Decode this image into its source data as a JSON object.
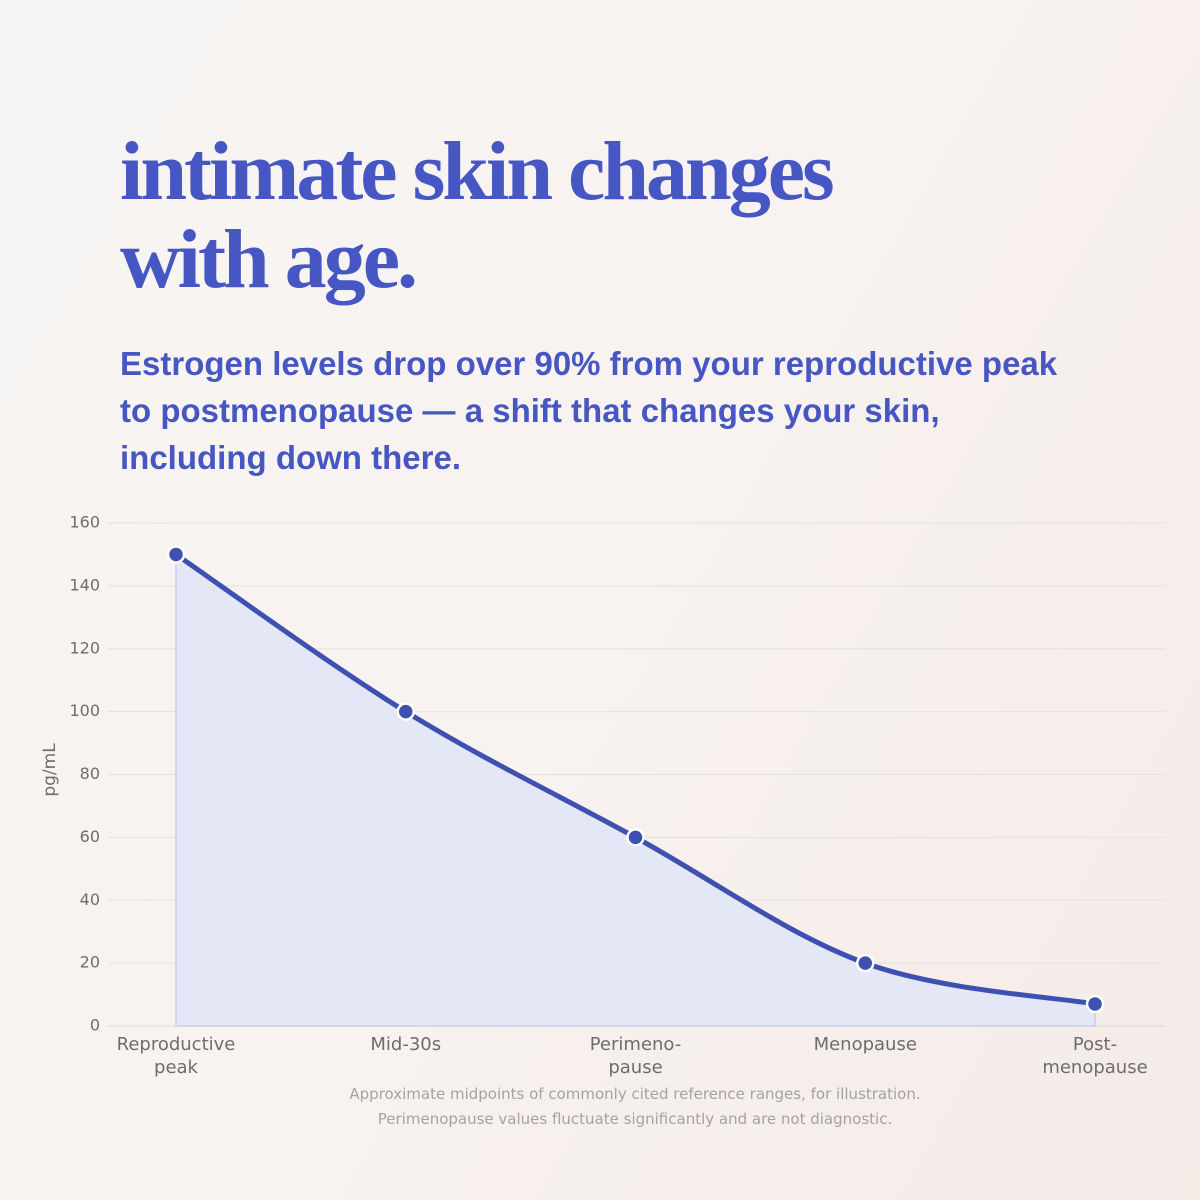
{
  "chart_data": {
    "type": "area-line",
    "title": "intimate skin changes\nwith age.",
    "subtitle": "Estrogen levels drop over 90% from your reproductive peak to postmenopause — a shift that changes your skin, including down there.",
    "y_label": "pg/mL",
    "categories": [
      "Reproductive\npeak",
      "Mid-30s",
      "Perimeno-\npause",
      "Menopause",
      "Post-\nmenopause"
    ],
    "values": [
      150,
      100,
      60,
      20,
      7
    ],
    "color": "#3f51b0",
    "fill": "#e4e7f6",
    "ylim": [
      0,
      160
    ],
    "yticks": [
      0,
      20,
      40,
      60,
      80,
      100,
      120,
      140,
      160
    ],
    "grid": true,
    "notes": [
      "Approximate midpoints of commonly cited reference ranges, for illustration.",
      "Perimenopause values fluctuate significantly and are not diagnostic."
    ]
  }
}
